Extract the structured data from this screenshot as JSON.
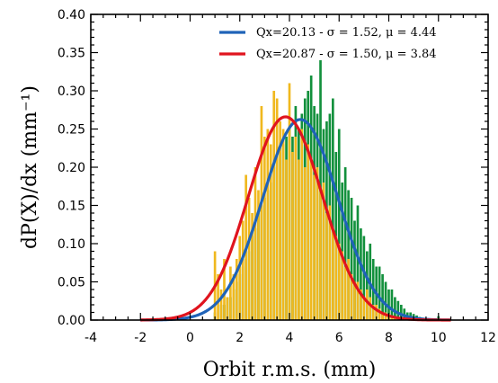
{
  "chart_data": {
    "type": "bar",
    "xlabel": "Orbit r.m.s. (mm)",
    "ylabel": "dP(X)/dx (mm⁻¹)",
    "xlim": [
      -4,
      12
    ],
    "ylim": [
      0,
      0.4
    ],
    "xticks": [
      "-4",
      "-2",
      "0",
      "2",
      "4",
      "6",
      "8",
      "10",
      "12"
    ],
    "yticks": [
      "0.00",
      "0.05",
      "0.10",
      "0.15",
      "0.20",
      "0.25",
      "0.30",
      "0.35",
      "0.40"
    ],
    "legend_position": "top-right",
    "grid": false,
    "bin_width": 0.125,
    "series": [
      {
        "name": "Qx=20.13 - σ = 1.52, μ = 4.44",
        "sigma": 1.52,
        "mu": 4.44,
        "curve_color": "#1f63b8",
        "bar_color": "#12903c",
        "hist_x": [
          1.0,
          1.125,
          1.25,
          1.375,
          1.5,
          1.625,
          1.75,
          1.875,
          2.0,
          2.125,
          2.25,
          2.375,
          2.5,
          2.625,
          2.75,
          2.875,
          3.0,
          3.125,
          3.25,
          3.375,
          3.5,
          3.625,
          3.75,
          3.875,
          4.0,
          4.125,
          4.25,
          4.375,
          4.5,
          4.625,
          4.75,
          4.875,
          5.0,
          5.125,
          5.25,
          5.375,
          5.5,
          5.625,
          5.75,
          5.875,
          6.0,
          6.125,
          6.25,
          6.375,
          6.5,
          6.625,
          6.75,
          6.875,
          7.0,
          7.125,
          7.25,
          7.375,
          7.5,
          7.625,
          7.75,
          7.875,
          8.0,
          8.125,
          8.25,
          8.375,
          8.5,
          8.625,
          8.75,
          8.875,
          9.0,
          9.125,
          9.25,
          9.375,
          9.5,
          9.625,
          9.75,
          9.875,
          10.0
        ],
        "hist_y": [
          0.01,
          0.0,
          0.02,
          0.02,
          0.03,
          0.03,
          0.04,
          0.05,
          0.06,
          0.07,
          0.08,
          0.09,
          0.11,
          0.12,
          0.14,
          0.15,
          0.16,
          0.17,
          0.18,
          0.2,
          0.21,
          0.22,
          0.23,
          0.24,
          0.25,
          0.24,
          0.28,
          0.25,
          0.27,
          0.29,
          0.3,
          0.32,
          0.28,
          0.27,
          0.34,
          0.25,
          0.26,
          0.27,
          0.29,
          0.22,
          0.25,
          0.18,
          0.2,
          0.17,
          0.16,
          0.13,
          0.15,
          0.12,
          0.11,
          0.09,
          0.1,
          0.08,
          0.07,
          0.07,
          0.06,
          0.05,
          0.04,
          0.04,
          0.03,
          0.025,
          0.02,
          0.015,
          0.01,
          0.01,
          0.008,
          0.006,
          0.004,
          0.003,
          0.002,
          0.002,
          0.001,
          0.001,
          0.005
        ]
      },
      {
        "name": "Qx=20.87 - σ = 1.50, μ = 3.84",
        "sigma": 1.5,
        "mu": 3.84,
        "curve_color": "#e0141e",
        "bar_color": "#f0b81e",
        "hist_x": [
          1.0,
          1.125,
          1.25,
          1.375,
          1.5,
          1.625,
          1.75,
          1.875,
          2.0,
          2.125,
          2.25,
          2.375,
          2.5,
          2.625,
          2.75,
          2.875,
          3.0,
          3.125,
          3.25,
          3.375,
          3.5,
          3.625,
          3.75,
          3.875,
          4.0,
          4.125,
          4.25,
          4.375,
          4.5,
          4.625,
          4.75,
          4.875,
          5.0,
          5.125,
          5.25,
          5.375,
          5.5,
          5.625,
          5.75,
          5.875,
          6.0,
          6.125,
          6.25,
          6.375,
          6.5,
          6.625,
          6.75,
          6.875,
          7.0,
          7.125,
          7.25,
          7.375,
          7.5,
          7.625,
          7.75,
          7.875,
          8.0,
          8.125,
          8.25,
          8.375,
          8.5,
          8.625,
          8.75,
          8.875,
          9.0
        ],
        "hist_y": [
          0.09,
          0.06,
          0.04,
          0.08,
          0.03,
          0.07,
          0.06,
          0.08,
          0.11,
          0.13,
          0.19,
          0.16,
          0.14,
          0.2,
          0.17,
          0.28,
          0.24,
          0.25,
          0.23,
          0.3,
          0.29,
          0.26,
          0.25,
          0.21,
          0.31,
          0.22,
          0.24,
          0.21,
          0.25,
          0.2,
          0.23,
          0.21,
          0.19,
          0.2,
          0.17,
          0.18,
          0.14,
          0.15,
          0.12,
          0.11,
          0.1,
          0.09,
          0.07,
          0.08,
          0.06,
          0.05,
          0.05,
          0.04,
          0.03,
          0.04,
          0.03,
          0.02,
          0.02,
          0.015,
          0.01,
          0.01,
          0.008,
          0.006,
          0.004,
          0.004,
          0.003,
          0.002,
          0.001,
          0.001,
          0.001
        ]
      }
    ]
  }
}
